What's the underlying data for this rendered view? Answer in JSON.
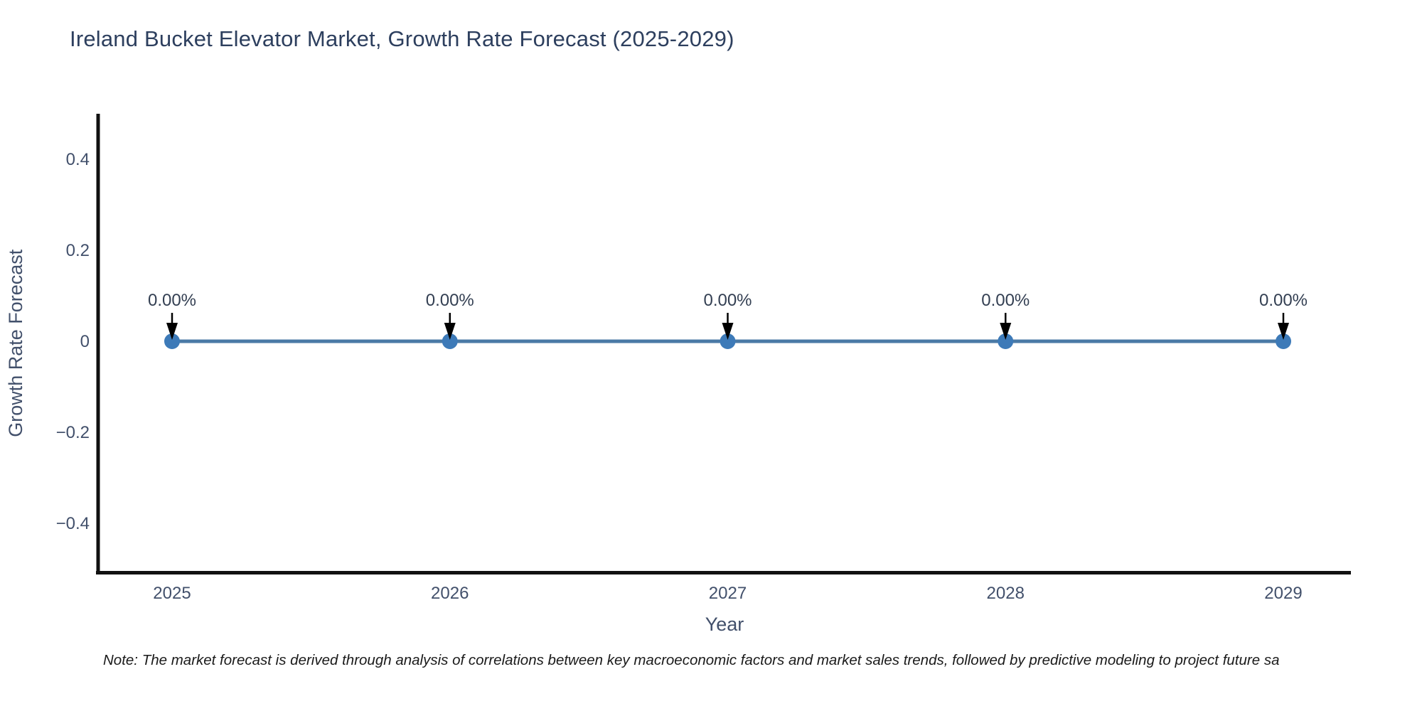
{
  "page": {
    "note": "Note: The market forecast is derived through analysis of correlations between key macroeconomic factors and market sales trends, followed by predictive modeling to project future sa"
  },
  "chart_data": {
    "type": "line",
    "title": "Ireland Bucket Elevator Market, Growth Rate Forecast (2025-2029)",
    "xlabel": "Year",
    "ylabel": "Growth Rate Forecast",
    "x": [
      "2025",
      "2026",
      "2027",
      "2028",
      "2029"
    ],
    "values": [
      0,
      0,
      0,
      0,
      0
    ],
    "point_labels": [
      "0.00%",
      "0.00%",
      "0.00%",
      "0.00%",
      "0.00%"
    ],
    "yticks": [
      0.4,
      0.2,
      0,
      -0.2,
      -0.4
    ],
    "ytick_labels": [
      "0.4",
      "0.2",
      "0",
      "−0.2",
      "−0.4"
    ],
    "ylim": [
      -0.5,
      0.5
    ],
    "grid": false,
    "legend_position": "none",
    "colors": {
      "title_text": "#2d3f5e",
      "axis_text": "#42506b",
      "annotation_text": "#333f52",
      "axis_line": "#111111",
      "line": "#4a7aa6",
      "marker": "#3d7ab8",
      "arrow": "#000000",
      "note_text": "#1a1a1a",
      "background": "#ffffff"
    }
  }
}
